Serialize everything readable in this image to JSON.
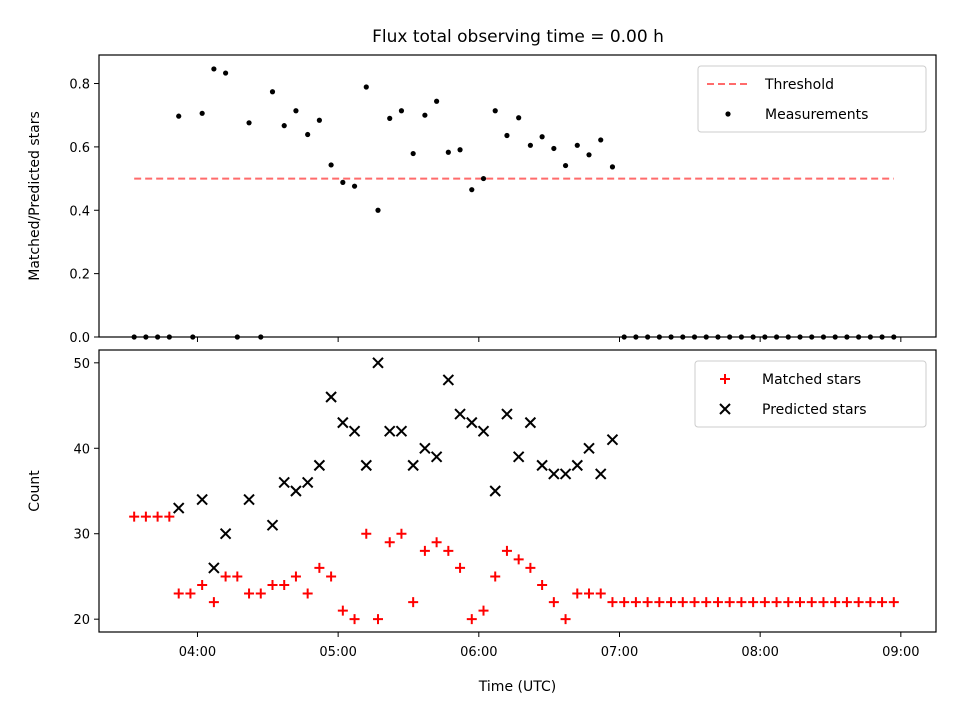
{
  "figure": {
    "title": "Flux total observing time = 0.00 h"
  },
  "chart_data": [
    {
      "type": "scatter",
      "title": "Flux total observing time = 0.00 h",
      "xlabel": "",
      "ylabel": "Matched/Predicted stars",
      "xlim": [
        "03:18",
        "09:15"
      ],
      "ylim": [
        0,
        0.89
      ],
      "yticks": [
        0.0,
        0.2,
        0.4,
        0.6,
        0.8
      ],
      "ytick_labels": [
        "0.0",
        "0.2",
        "0.4",
        "0.6",
        "0.8"
      ],
      "xticks": [
        "04:00",
        "05:00",
        "06:00",
        "07:00",
        "08:00",
        "09:00"
      ],
      "show_xtick_labels": false,
      "grid": false,
      "legend": "top-right",
      "colors": {
        "threshold": "#ff6b6b",
        "measurements": "#000000"
      },
      "series": [
        {
          "name": "Threshold",
          "kind": "dashed-line",
          "x": [
            "03:33",
            "08:57"
          ],
          "y": [
            0.5,
            0.5
          ]
        },
        {
          "name": "Measurements",
          "kind": "dot",
          "x": [
            "03:33",
            "03:38",
            "03:43",
            "03:48",
            "03:52",
            "03:58",
            "04:02",
            "04:07",
            "04:12",
            "04:17",
            "04:22",
            "04:27",
            "04:32",
            "04:37",
            "04:42",
            "04:47",
            "04:52",
            "04:57",
            "05:02",
            "05:07",
            "05:12",
            "05:17",
            "05:22",
            "05:27",
            "05:32",
            "05:37",
            "05:42",
            "05:47",
            "05:52",
            "05:57",
            "06:02",
            "06:07",
            "06:12",
            "06:17",
            "06:22",
            "06:27",
            "06:32",
            "06:37",
            "06:42",
            "06:47",
            "06:52",
            "06:57",
            "07:02",
            "07:07",
            "07:12",
            "07:17",
            "07:22",
            "07:27",
            "07:32",
            "07:37",
            "07:42",
            "07:47",
            "07:52",
            "07:57",
            "08:02",
            "08:07",
            "08:12",
            "08:17",
            "08:22",
            "08:27",
            "08:32",
            "08:37",
            "08:42",
            "08:47",
            "08:52",
            "08:57"
          ],
          "y": [
            0,
            0,
            0,
            0,
            0.697,
            0,
            0.706,
            0.846,
            0.833,
            0,
            0.676,
            0,
            0.774,
            0.667,
            0.714,
            0.639,
            0.684,
            0.543,
            0.488,
            0.476,
            0.789,
            0.4,
            0.69,
            0.714,
            0.579,
            0.7,
            0.744,
            0.583,
            0.591,
            0.465,
            0.5,
            0.714,
            0.636,
            0.692,
            0.605,
            0.632,
            0.595,
            0.541,
            0.605,
            0.575,
            0.622,
            0.537,
            0,
            0,
            0,
            0,
            0,
            0,
            0,
            0,
            0,
            0,
            0,
            0,
            0,
            0,
            0,
            0,
            0,
            0,
            0,
            0,
            0,
            0,
            0,
            0
          ]
        }
      ]
    },
    {
      "type": "scatter",
      "title": "",
      "xlabel": "Time (UTC)",
      "ylabel": "Count",
      "xlim": [
        "03:18",
        "09:15"
      ],
      "ylim": [
        18.5,
        51.5
      ],
      "yticks": [
        20,
        30,
        40,
        50
      ],
      "ytick_labels": [
        "20",
        "30",
        "40",
        "50"
      ],
      "xticks": [
        "04:00",
        "05:00",
        "06:00",
        "07:00",
        "08:00",
        "09:00"
      ],
      "xtick_labels": [
        "04:00",
        "05:00",
        "06:00",
        "07:00",
        "08:00",
        "09:00"
      ],
      "grid": false,
      "legend": "top-right",
      "colors": {
        "matched": "#ff0000",
        "predicted": "#000000"
      },
      "series": [
        {
          "name": "Matched stars",
          "kind": "plus",
          "x": [
            "03:33",
            "03:38",
            "03:43",
            "03:48",
            "03:52",
            "03:57",
            "04:02",
            "04:07",
            "04:12",
            "04:17",
            "04:22",
            "04:27",
            "04:32",
            "04:37",
            "04:42",
            "04:47",
            "04:52",
            "04:57",
            "05:02",
            "05:07",
            "05:12",
            "05:17",
            "05:22",
            "05:27",
            "05:32",
            "05:37",
            "05:42",
            "05:47",
            "05:52",
            "05:57",
            "06:02",
            "06:07",
            "06:12",
            "06:17",
            "06:22",
            "06:27",
            "06:32",
            "06:37",
            "06:42",
            "06:47",
            "06:52",
            "06:57",
            "07:02",
            "07:07",
            "07:12",
            "07:17",
            "07:22",
            "07:27",
            "07:32",
            "07:37",
            "07:42",
            "07:47",
            "07:52",
            "07:57",
            "08:02",
            "08:07",
            "08:12",
            "08:17",
            "08:22",
            "08:27",
            "08:32",
            "08:37",
            "08:42",
            "08:47",
            "08:52",
            "08:57"
          ],
          "y": [
            32,
            32,
            32,
            32,
            23,
            23,
            24,
            22,
            25,
            25,
            23,
            23,
            24,
            24,
            25,
            23,
            26,
            25,
            21,
            20,
            30,
            20,
            29,
            30,
            22,
            28,
            29,
            28,
            26,
            20,
            21,
            25,
            28,
            27,
            26,
            24,
            22,
            20,
            23,
            23,
            23,
            22,
            22,
            22,
            22,
            22,
            22,
            22,
            22,
            22,
            22,
            22,
            22,
            22,
            22,
            22,
            22,
            22,
            22,
            22,
            22,
            22,
            22,
            22,
            22,
            22
          ]
        },
        {
          "name": "Predicted stars",
          "kind": "cross",
          "x": [
            "03:52",
            "04:02",
            "04:07",
            "04:12",
            "04:22",
            "04:32",
            "04:37",
            "04:42",
            "04:47",
            "04:52",
            "04:57",
            "05:02",
            "05:07",
            "05:12",
            "05:17",
            "05:22",
            "05:27",
            "05:32",
            "05:37",
            "05:42",
            "05:47",
            "05:52",
            "05:57",
            "06:02",
            "06:07",
            "06:12",
            "06:17",
            "06:22",
            "06:27",
            "06:32",
            "06:37",
            "06:42",
            "06:47",
            "06:52",
            "06:57"
          ],
          "y": [
            33,
            34,
            26,
            30,
            34,
            31,
            36,
            35,
            36,
            38,
            46,
            43,
            42,
            38,
            50,
            42,
            42,
            38,
            40,
            39,
            48,
            44,
            43,
            42,
            35,
            44,
            39,
            43,
            38,
            37,
            37,
            38,
            40,
            37,
            41
          ]
        }
      ]
    }
  ]
}
